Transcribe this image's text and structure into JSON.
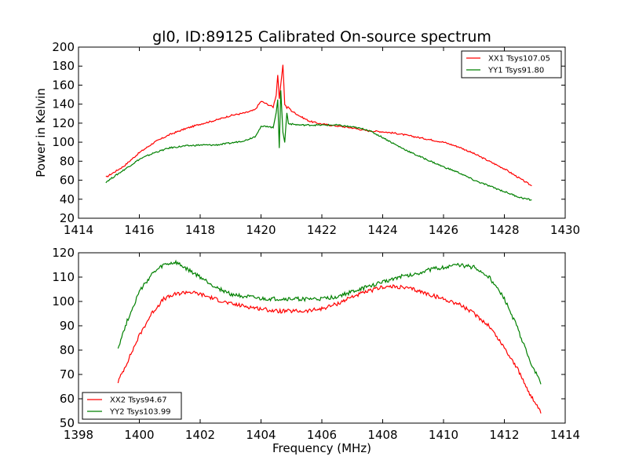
{
  "chart_data": [
    {
      "type": "line",
      "title": "gl0, ID:89125 Calibrated On-source spectrum",
      "xlabel": "",
      "ylabel": "Power in Kelvin",
      "xlim": [
        1414,
        1430
      ],
      "ylim": [
        20,
        200
      ],
      "xticks": [
        "1414",
        "1416",
        "1418",
        "1420",
        "1422",
        "1424",
        "1426",
        "1428",
        "1430"
      ],
      "yticks": [
        "20",
        "40",
        "60",
        "80",
        "100",
        "120",
        "140",
        "160",
        "180",
        "200"
      ],
      "grid": false,
      "legend_position": "top-right",
      "series": [
        {
          "name": "XX1 Tsys107.05",
          "color": "#ff0000",
          "x": [
            1414.9,
            1415.5,
            1416,
            1416.5,
            1417,
            1417.5,
            1418,
            1418.5,
            1419,
            1419.5,
            1419.8,
            1420,
            1420.2,
            1420.4,
            1420.5,
            1420.55,
            1420.6,
            1420.65,
            1420.72,
            1420.78,
            1420.85,
            1420.9,
            1421,
            1421.3,
            1421.6,
            1422,
            1422.5,
            1423,
            1423.5,
            1424,
            1424.5,
            1425,
            1425.5,
            1426,
            1426.5,
            1427,
            1427.5,
            1428,
            1428.5,
            1428.9
          ],
          "values": [
            63,
            75,
            89,
            100,
            108,
            114,
            119,
            123,
            128,
            131,
            134,
            143,
            140,
            137,
            150,
            171,
            145,
            160,
            182,
            140,
            136,
            137,
            133,
            127,
            122,
            119,
            117,
            115,
            112,
            111,
            109,
            106,
            103,
            100,
            95,
            88,
            80,
            72,
            62,
            54
          ]
        },
        {
          "name": "YY1 Tsys91.80",
          "color": "#008000",
          "x": [
            1414.9,
            1415.5,
            1416,
            1416.5,
            1417,
            1417.5,
            1418,
            1418.5,
            1419,
            1419.5,
            1419.8,
            1420,
            1420.2,
            1420.4,
            1420.5,
            1420.55,
            1420.6,
            1420.65,
            1420.72,
            1420.78,
            1420.85,
            1420.9,
            1421,
            1421.3,
            1421.6,
            1422,
            1422.5,
            1423,
            1423.5,
            1424,
            1424.5,
            1425,
            1425.5,
            1426,
            1426.5,
            1427,
            1427.5,
            1428,
            1428.5,
            1428.9
          ],
          "values": [
            58,
            71,
            82,
            89,
            94,
            96,
            97,
            97,
            99,
            102,
            106,
            116,
            117,
            115,
            132,
            145,
            93,
            155,
            110,
            100,
            131,
            120,
            119,
            118,
            118,
            118,
            118,
            116,
            113,
            105,
            96,
            88,
            81,
            74,
            68,
            60,
            54,
            48,
            42,
            39
          ]
        }
      ]
    },
    {
      "type": "line",
      "title": "",
      "xlabel": "Frequency (MHz)",
      "ylabel": "",
      "xlim": [
        1398,
        1414
      ],
      "ylim": [
        50,
        120
      ],
      "xticks": [
        "1398",
        "1400",
        "1402",
        "1404",
        "1406",
        "1408",
        "1410",
        "1412",
        "1414"
      ],
      "yticks": [
        "50",
        "60",
        "70",
        "80",
        "90",
        "100",
        "110",
        "120"
      ],
      "grid": false,
      "legend_position": "bottom-left",
      "series": [
        {
          "name": "XX2 Tsys94.67",
          "color": "#ff0000",
          "x": [
            1399.3,
            1399.6,
            1400,
            1400.4,
            1400.8,
            1401.2,
            1401.6,
            1402,
            1402.5,
            1403,
            1403.5,
            1404,
            1404.5,
            1405,
            1405.5,
            1406,
            1406.5,
            1407,
            1407.5,
            1408,
            1408.5,
            1409,
            1409.5,
            1410,
            1410.5,
            1411,
            1411.5,
            1412,
            1412.4,
            1412.8,
            1413.2
          ],
          "values": [
            67,
            75,
            86,
            95,
            101,
            103,
            104,
            103,
            101,
            99,
            98,
            97,
            96,
            96,
            96,
            97,
            99,
            102,
            104,
            106,
            106,
            105,
            103,
            101,
            99,
            95,
            90,
            81,
            73,
            63,
            54
          ]
        },
        {
          "name": "YY2 Tsys103.99",
          "color": "#008000",
          "x": [
            1399.3,
            1399.6,
            1400,
            1400.4,
            1400.8,
            1401.2,
            1401.6,
            1402,
            1402.5,
            1403,
            1403.5,
            1404,
            1404.5,
            1405,
            1405.5,
            1406,
            1406.5,
            1407,
            1407.5,
            1408,
            1408.5,
            1409,
            1409.5,
            1410,
            1410.5,
            1411,
            1411.5,
            1412,
            1412.4,
            1412.8,
            1413.2
          ],
          "values": [
            81,
            92,
            104,
            111,
            115,
            116,
            113,
            110,
            106,
            103,
            102,
            101,
            101,
            101,
            101,
            101,
            102,
            104,
            106,
            108,
            110,
            111,
            113,
            114,
            115,
            114,
            110,
            101,
            90,
            77,
            66
          ]
        }
      ]
    }
  ]
}
